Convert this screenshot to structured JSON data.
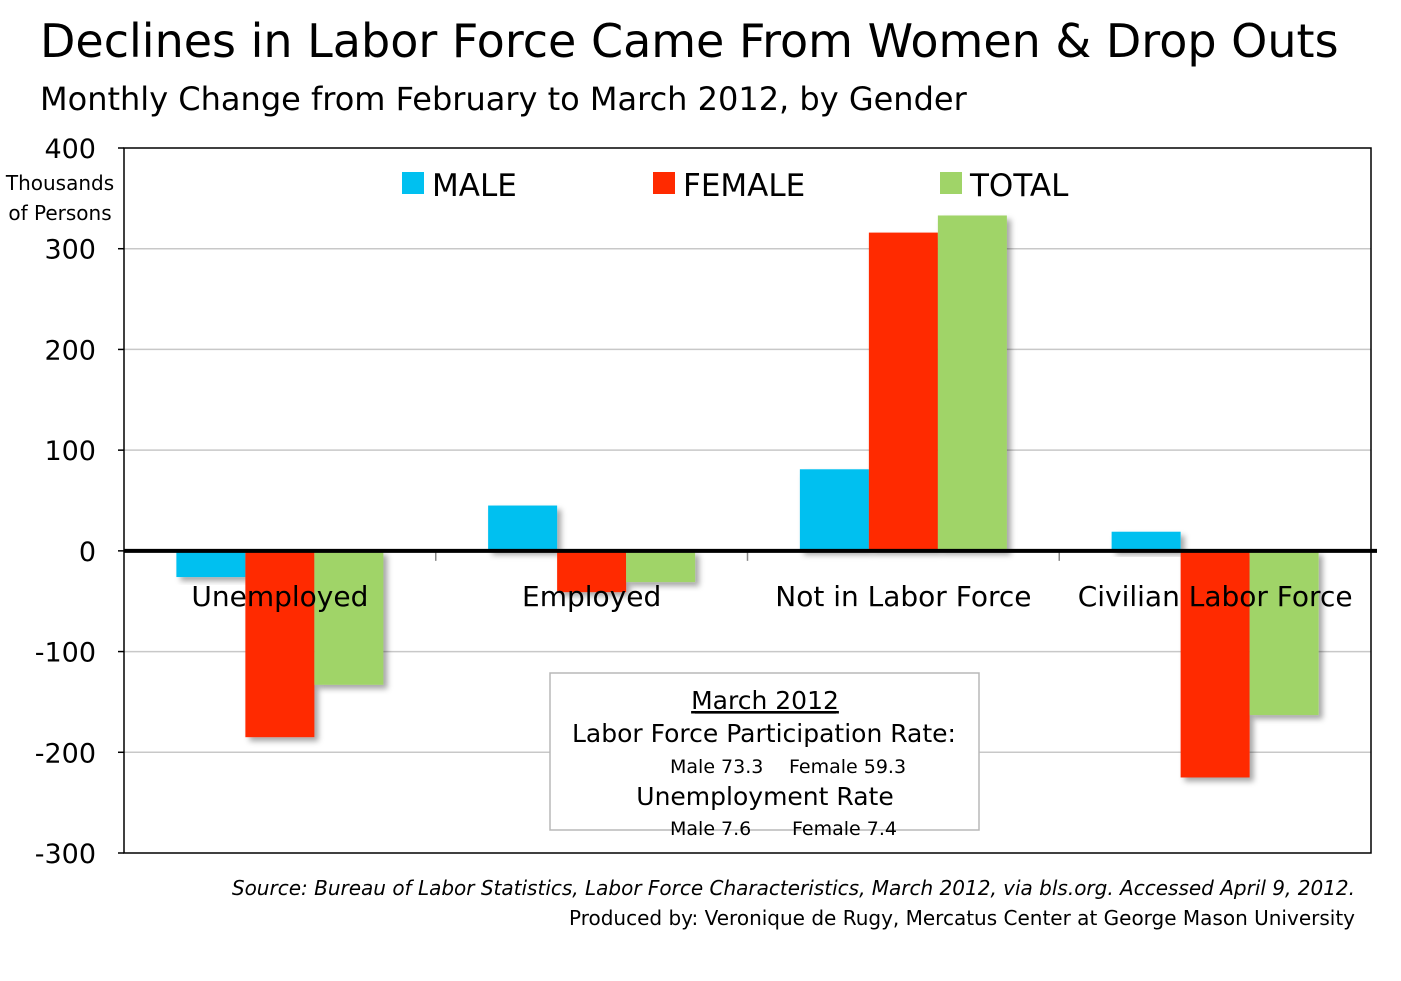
{
  "chart_data": {
    "type": "bar",
    "title": "Declines in Labor Force Came From Women & Drop Outs",
    "subtitle": "Monthly Change from February to March 2012, by Gender",
    "ylabel": "Thousands of Persons",
    "ylabel_lines": [
      "Thousands",
      "of Persons"
    ],
    "ylim": [
      -300,
      400
    ],
    "yticks": [
      400,
      300,
      200,
      100,
      0,
      -100,
      -200,
      -300
    ],
    "grid": true,
    "legend_position": "top",
    "categories": [
      "Unemployed",
      "Employed",
      "Not in Labor Force",
      "Civilian Labor Force"
    ],
    "series": [
      {
        "name": "MALE",
        "color": "#00c0f0",
        "values": [
          -26,
          45,
          81,
          19
        ]
      },
      {
        "name": "FEMALE",
        "color": "#ff2a00",
        "values": [
          -185,
          -41,
          316,
          -225
        ]
      },
      {
        "name": "TOTAL",
        "color": "#a0d468",
        "values": [
          -133,
          -31,
          333,
          -163
        ]
      }
    ],
    "annotation": {
      "heading": "March 2012",
      "line1": "Labor Force Participation Rate:",
      "male_lfpr": "Male 73.3",
      "female_lfpr": "Female 59.3",
      "line2": "Unemployment Rate",
      "male_ur": "Male 7.6",
      "female_ur": "Female  7.4"
    }
  },
  "footer": {
    "source": "Source: Bureau of Labor Statistics, Labor Force Characteristics, March  2012, via bls.org. Accessed April 9, 2012.",
    "credit": "Produced by: Veronique de Rugy, Mercatus Center at George Mason University"
  }
}
